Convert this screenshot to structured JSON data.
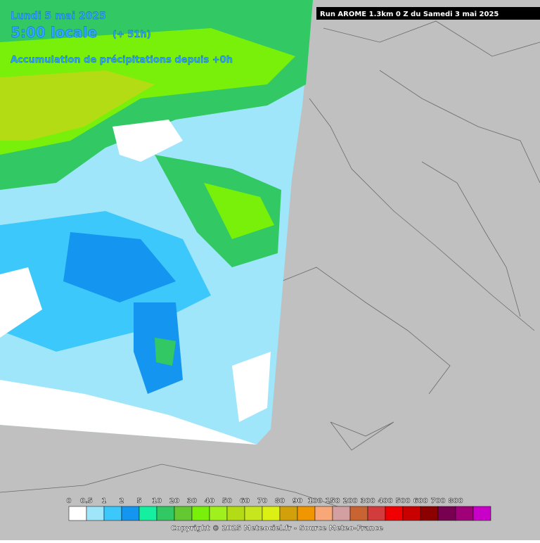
{
  "header": {
    "date": "Lundi 5 mai 2025",
    "time": "5:00 locale",
    "lead": "(+ 51h)",
    "product": "Accumulation de précipitations depuis +0h",
    "run": "Run AROME 1.3km 0 Z du Samedi 3 mai 2025"
  },
  "legend": {
    "items": [
      {
        "label": "0",
        "color": "#ffffff"
      },
      {
        "label": "0.5",
        "color": "#a0e6fa"
      },
      {
        "label": "1",
        "color": "#3cc8fa"
      },
      {
        "label": "2",
        "color": "#1496f0"
      },
      {
        "label": "5",
        "color": "#14f0a0"
      },
      {
        "label": "10",
        "color": "#32c864"
      },
      {
        "label": "20",
        "color": "#64c832"
      },
      {
        "label": "30",
        "color": "#78f00a"
      },
      {
        "label": "40",
        "color": "#a0f01e"
      },
      {
        "label": "50",
        "color": "#b4dc14"
      },
      {
        "label": "60",
        "color": "#c8e61e"
      },
      {
        "label": "70",
        "color": "#dcf014"
      },
      {
        "label": "80",
        "color": "#d2a00a"
      },
      {
        "label": "90",
        "color": "#f09600"
      },
      {
        "label": "100",
        "color": "#f8a878"
      },
      {
        "label": "150",
        "color": "#d2a0a0"
      },
      {
        "label": "200",
        "color": "#c86432"
      },
      {
        "label": "300",
        "color": "#d23c3c"
      },
      {
        "label": "400",
        "color": "#f00000"
      },
      {
        "label": "500",
        "color": "#c80000"
      },
      {
        "label": "600",
        "color": "#8c0000"
      },
      {
        "label": "700",
        "color": "#780050"
      },
      {
        "label": "800",
        "color": "#a00078"
      }
    ],
    "last_color": "#c800c8"
  },
  "footer": {
    "copyright": "Copyright © 2025 Meteociel.fr - Source Meteo-France"
  }
}
